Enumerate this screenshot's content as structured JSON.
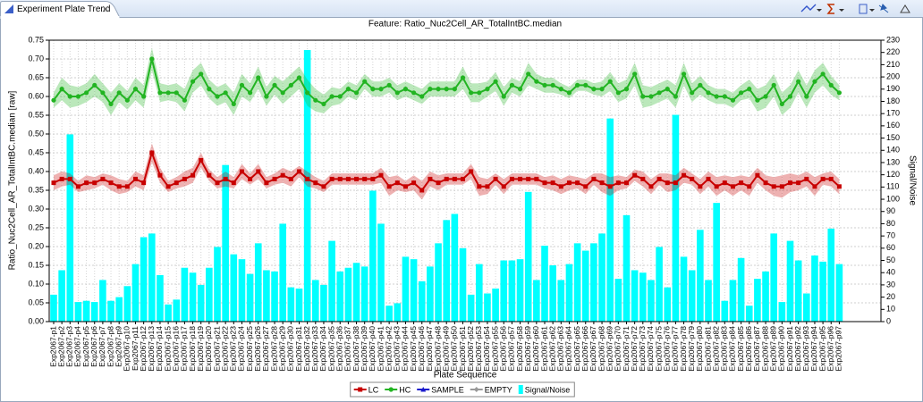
{
  "tab_title": "Experiment Plate Trend",
  "chart_data": {
    "type": "combo",
    "title": "Feature: Ratio_Nuc2Cell_AR_TotalIntBC.median",
    "x_label": "Plate Sequence",
    "y_label": "Ratio_Nuc2Cell_AR_TotalIntBC.median [raw]",
    "y2_label": "Signal/Noise",
    "grid": true,
    "legend": "bottom",
    "categories": [
      "Exp2067-p1",
      "Exp2067-p2",
      "Exp2067-p3",
      "Exp2067-p4",
      "Exp2067-p5",
      "Exp2067-p6",
      "Exp2067-p7",
      "Exp2067-p8",
      "Exp2067-p9",
      "Exp2067-p10",
      "Exp2067-p11",
      "Exp2067-p12",
      "Exp2067-p13",
      "Exp2067-p14",
      "Exp2067-p15",
      "Exp2067-p16",
      "Exp2067-p17",
      "Exp2067-p18",
      "Exp2067-p19",
      "Exp2067-p20",
      "Exp2067-p21",
      "Exp2067-p22",
      "Exp2067-p23",
      "Exp2067-p24",
      "Exp2067-p25",
      "Exp2067-p26",
      "Exp2067-p27",
      "Exp2067-p28",
      "Exp2067-p29",
      "Exp2067-p30",
      "Exp2067-p31",
      "Exp2067-p32",
      "Exp2067-p33",
      "Exp2067-p34",
      "Exp2067-p35",
      "Exp2067-p36",
      "Exp2067-p37",
      "Exp2067-p38",
      "Exp2067-p39",
      "Exp2067-p40",
      "Exp2067-p41",
      "Exp2067-p42",
      "Exp2067-p43",
      "Exp2067-p44",
      "Exp2067-p45",
      "Exp2067-p46",
      "Exp2067-p47",
      "Exp2067-p48",
      "Exp2067-p49",
      "Exp2067-p50",
      "Exp2067-p51",
      "Exp2067-p52",
      "Exp2067-p53",
      "Exp2067-p54",
      "Exp2067-p55",
      "Exp2067-p56",
      "Exp2067-p57",
      "Exp2067-p58",
      "Exp2067-p59",
      "Exp2067-p60",
      "Exp2067-p61",
      "Exp2067-p62",
      "Exp2067-p63",
      "Exp2067-p64",
      "Exp2067-p65",
      "Exp2067-p66",
      "Exp2067-p67",
      "Exp2067-p68",
      "Exp2067-p69",
      "Exp2067-p70",
      "Exp2067-p71",
      "Exp2067-p72",
      "Exp2067-p73",
      "Exp2067-p74",
      "Exp2067-p75",
      "Exp2067-p76",
      "Exp2067-p77",
      "Exp2067-p78",
      "Exp2067-p79",
      "Exp2067-p80",
      "Exp2067-p81",
      "Exp2067-p82",
      "Exp2067-p83",
      "Exp2067-p84",
      "Exp2067-p85",
      "Exp2067-p86",
      "Exp2067-p87",
      "Exp2067-p88",
      "Exp2067-p89",
      "Exp2067-p90",
      "Exp2067-p91",
      "Exp2067-p92",
      "Exp2067-p93",
      "Exp2067-p94",
      "Exp2067-p95",
      "Exp2067-p96",
      "Exp2067-p97"
    ],
    "ylim": [
      0,
      0.75
    ],
    "yticks": [
      {
        "value": 0,
        "label": "0.00"
      },
      0.05,
      {
        "value": 0.1,
        "label": "0.10"
      },
      0.15,
      {
        "value": 0.2,
        "label": "0.20"
      },
      0.25,
      {
        "value": 0.3,
        "label": "0.30"
      },
      0.35,
      {
        "value": 0.4,
        "label": "0.40"
      },
      0.45,
      {
        "value": 0.5,
        "label": "0.50"
      },
      0.55,
      {
        "value": 0.6,
        "label": "0.60"
      },
      0.65,
      {
        "value": 0.7,
        "label": "0.70"
      },
      0.75
    ],
    "y2lim": [
      0,
      230
    ],
    "y2ticks": [
      0,
      10,
      20,
      30,
      40,
      50,
      60,
      70,
      80,
      90,
      100,
      110,
      120,
      130,
      140,
      150,
      160,
      170,
      180,
      190,
      200,
      210,
      220,
      230
    ],
    "series": [
      {
        "name": "LC",
        "type": "line",
        "marker": "square",
        "color": "#c80000",
        "values": [
          0.37,
          0.38,
          0.38,
          0.36,
          0.37,
          0.37,
          0.38,
          0.37,
          0.36,
          0.36,
          0.38,
          0.37,
          0.45,
          0.39,
          0.36,
          0.37,
          0.38,
          0.39,
          0.43,
          0.39,
          0.37,
          0.38,
          0.37,
          0.4,
          0.38,
          0.4,
          0.37,
          0.38,
          0.39,
          0.38,
          0.4,
          0.38,
          0.37,
          0.36,
          0.38,
          0.38,
          0.38,
          0.38,
          0.38,
          0.38,
          0.39,
          0.36,
          0.37,
          0.36,
          0.37,
          0.35,
          0.38,
          0.37,
          0.38,
          0.38,
          0.38,
          0.4,
          0.36,
          0.36,
          0.38,
          0.36,
          0.38,
          0.38,
          0.38,
          0.38,
          0.37,
          0.37,
          0.36,
          0.37,
          0.37,
          0.36,
          0.38,
          0.37,
          0.36,
          0.37,
          0.37,
          0.39,
          0.38,
          0.36,
          0.38,
          0.37,
          0.37,
          0.39,
          0.38,
          0.36,
          0.38,
          0.36,
          0.37,
          0.36,
          0.37,
          0.36,
          0.39,
          0.37,
          0.36,
          0.36,
          0.37,
          0.37,
          0.38,
          0.36,
          0.38,
          0.38,
          0.36
        ],
        "errors": [
          0.02,
          0.02,
          0.015,
          0.015,
          0.02,
          0.015,
          0.015,
          0.02,
          0.02,
          0.015,
          0.02,
          0.02,
          0.025,
          0.02,
          0.015,
          0.015,
          0.02,
          0.02,
          0.02,
          0.015,
          0.015,
          0.02,
          0.015,
          0.02,
          0.015,
          0.02,
          0.015,
          0.015,
          0.02,
          0.02,
          0.015,
          0.02,
          0.015,
          0.015,
          0.015,
          0.015,
          0.015,
          0.015,
          0.015,
          0.015,
          0.02,
          0.025,
          0.02,
          0.015,
          0.02,
          0.025,
          0.02,
          0.02,
          0.015,
          0.015,
          0.015,
          0.02,
          0.025,
          0.02,
          0.015,
          0.02,
          0.015,
          0.015,
          0.015,
          0.015,
          0.015,
          0.02,
          0.02,
          0.02,
          0.015,
          0.02,
          0.015,
          0.025,
          0.025,
          0.02,
          0.015,
          0.015,
          0.02,
          0.02,
          0.015,
          0.025,
          0.02,
          0.02,
          0.015,
          0.02,
          0.02,
          0.025,
          0.02,
          0.025,
          0.02,
          0.025,
          0.02,
          0.02,
          0.025,
          0.03,
          0.025,
          0.02,
          0.02,
          0.025,
          0.015,
          0.02,
          0.02
        ]
      },
      {
        "name": "HC",
        "type": "line",
        "marker": "circle",
        "color": "#22b422",
        "values": [
          0.59,
          0.62,
          0.6,
          0.6,
          0.61,
          0.63,
          0.61,
          0.58,
          0.61,
          0.59,
          0.62,
          0.6,
          0.7,
          0.61,
          0.61,
          0.61,
          0.59,
          0.64,
          0.66,
          0.62,
          0.6,
          0.61,
          0.58,
          0.63,
          0.61,
          0.65,
          0.6,
          0.63,
          0.61,
          0.63,
          0.65,
          0.61,
          0.59,
          0.58,
          0.6,
          0.6,
          0.62,
          0.61,
          0.64,
          0.62,
          0.62,
          0.63,
          0.61,
          0.62,
          0.61,
          0.6,
          0.62,
          0.62,
          0.62,
          0.62,
          0.65,
          0.61,
          0.61,
          0.62,
          0.64,
          0.6,
          0.63,
          0.62,
          0.66,
          0.64,
          0.63,
          0.63,
          0.62,
          0.61,
          0.63,
          0.63,
          0.62,
          0.62,
          0.64,
          0.61,
          0.62,
          0.66,
          0.6,
          0.6,
          0.61,
          0.62,
          0.6,
          0.66,
          0.61,
          0.63,
          0.61,
          0.6,
          0.6,
          0.59,
          0.61,
          0.62,
          0.59,
          0.6,
          0.63,
          0.58,
          0.6,
          0.64,
          0.6,
          0.64,
          0.66,
          0.63,
          0.61
        ],
        "errors": [
          0.02,
          0.03,
          0.03,
          0.025,
          0.025,
          0.03,
          0.025,
          0.03,
          0.025,
          0.025,
          0.03,
          0.03,
          0.03,
          0.025,
          0.02,
          0.025,
          0.03,
          0.03,
          0.03,
          0.025,
          0.025,
          0.025,
          0.03,
          0.03,
          0.025,
          0.03,
          0.025,
          0.025,
          0.03,
          0.03,
          0.03,
          0.035,
          0.03,
          0.025,
          0.025,
          0.02,
          0.02,
          0.02,
          0.02,
          0.02,
          0.02,
          0.02,
          0.02,
          0.02,
          0.02,
          0.02,
          0.02,
          0.02,
          0.02,
          0.02,
          0.03,
          0.025,
          0.025,
          0.02,
          0.025,
          0.025,
          0.02,
          0.02,
          0.03,
          0.02,
          0.02,
          0.02,
          0.015,
          0.015,
          0.015,
          0.015,
          0.015,
          0.02,
          0.025,
          0.025,
          0.025,
          0.03,
          0.03,
          0.025,
          0.025,
          0.025,
          0.03,
          0.03,
          0.025,
          0.025,
          0.02,
          0.02,
          0.02,
          0.02,
          0.02,
          0.025,
          0.03,
          0.03,
          0.03,
          0.03,
          0.03,
          0.03,
          0.03,
          0.03,
          0.03,
          0.025,
          0.02
        ]
      },
      {
        "name": "SAMPLE",
        "type": "line",
        "marker": "triangle",
        "color": "#1a1acc",
        "values": [
          null,
          null,
          null,
          null,
          null,
          null,
          null,
          null,
          null,
          null,
          null,
          null,
          null,
          null,
          null,
          null,
          null,
          null,
          null,
          null,
          null,
          null,
          null,
          null,
          null,
          null,
          null,
          null,
          null,
          null,
          null,
          null,
          null,
          null,
          null,
          null,
          null,
          null,
          null,
          null,
          null,
          null,
          null,
          null,
          null,
          null,
          null,
          null,
          null,
          null,
          null,
          null,
          null,
          null,
          null,
          null,
          null,
          null,
          null,
          null,
          null,
          null,
          null,
          null,
          null,
          null,
          null,
          null,
          null,
          null,
          null,
          null,
          null,
          null,
          null,
          null,
          null,
          null,
          null,
          null,
          null,
          null,
          null,
          null,
          null,
          null,
          null,
          null,
          null,
          null,
          null,
          null,
          null,
          null,
          null,
          null,
          null
        ]
      },
      {
        "name": "EMPTY",
        "type": "line",
        "marker": "diamond",
        "color": "#999999",
        "values": [
          null,
          null,
          null,
          null,
          null,
          null,
          null,
          null,
          null,
          null,
          null,
          null,
          null,
          null,
          null,
          null,
          null,
          null,
          null,
          null,
          null,
          null,
          null,
          null,
          null,
          null,
          null,
          null,
          null,
          null,
          null,
          null,
          null,
          null,
          null,
          null,
          null,
          null,
          null,
          null,
          null,
          null,
          null,
          null,
          null,
          null,
          null,
          null,
          null,
          null,
          null,
          null,
          null,
          null,
          null,
          null,
          null,
          null,
          null,
          null,
          null,
          null,
          null,
          null,
          null,
          null,
          null,
          null,
          null,
          null,
          null,
          null,
          null,
          null,
          null,
          null,
          null,
          null,
          null,
          null,
          null,
          null,
          null,
          null,
          null,
          null,
          null,
          null,
          null,
          null,
          null,
          null,
          null,
          null,
          null,
          null,
          null
        ]
      },
      {
        "name": "Signal/Noise",
        "type": "bar",
        "axis": "y2",
        "color": "#00ffff",
        "values": [
          22,
          42,
          153,
          16,
          17,
          16,
          34,
          17,
          20,
          29,
          47,
          69,
          72,
          38,
          14,
          18,
          44,
          40,
          30,
          44,
          61,
          128,
          55,
          51,
          39,
          64,
          42,
          41,
          80,
          28,
          27,
          222,
          34,
          30,
          66,
          41,
          44,
          48,
          45,
          107,
          80,
          13,
          15,
          53,
          51,
          33,
          45,
          64,
          83,
          88,
          60,
          22,
          47,
          23,
          27,
          50,
          50,
          51,
          106,
          34,
          62,
          46,
          34,
          47,
          64,
          58,
          64,
          72,
          166,
          35,
          87,
          42,
          40,
          34,
          61,
          28,
          169,
          53,
          42,
          75,
          34,
          97,
          17,
          34,
          52,
          13,
          35,
          41,
          72,
          16,
          66,
          50,
          23,
          54,
          49,
          76,
          47
        ]
      }
    ]
  }
}
